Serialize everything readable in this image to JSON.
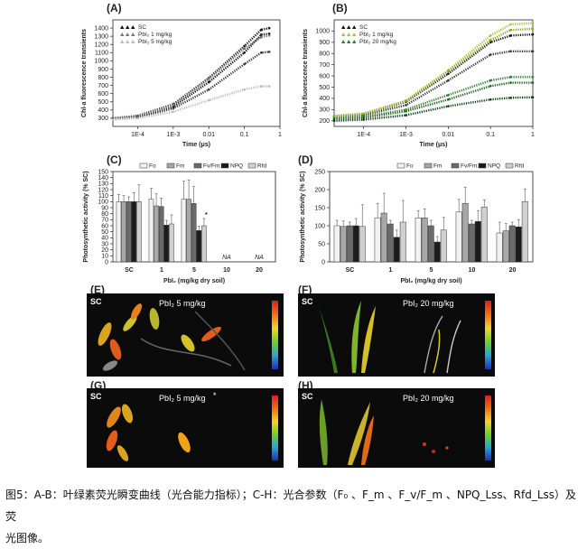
{
  "panel_labels": {
    "A": "(A)",
    "B": "(B)",
    "C": "(C)",
    "D": "(D)",
    "E": "(E)",
    "F": "(F)",
    "G": "(G)",
    "H": "(H)"
  },
  "chart_data": [
    {
      "id": "A",
      "type": "line",
      "xscale": "log",
      "xlabel": "Time (μs)",
      "ylabel": "Chl-a fluorescence transients",
      "xlim": [
        2e-05,
        1
      ],
      "ylim": [
        200,
        1500
      ],
      "xticks": [
        {
          "v": 0.0001,
          "label": "1E-4"
        },
        {
          "v": 0.001,
          "label": "1E-3"
        },
        {
          "v": 0.01,
          "label": "0.01"
        },
        {
          "v": 0.1,
          "label": "0.1"
        },
        {
          "v": 1,
          "label": "1"
        }
      ],
      "yticks": [
        300,
        400,
        500,
        600,
        700,
        800,
        900,
        1000,
        1100,
        1200,
        1300,
        1400
      ],
      "legend": [
        "SC",
        "PbI₂ 1 mg/kg",
        "PbI₂ 5 mg/kg"
      ],
      "series": [
        {
          "name": "SC",
          "color": "#111111",
          "values": [
            [
              2e-05,
              300
            ],
            [
              0.0001,
              330
            ],
            [
              0.001,
              470
            ],
            [
              0.01,
              790
            ],
            [
              0.1,
              1180
            ],
            [
              0.3,
              1380
            ],
            [
              0.5,
              1400
            ]
          ]
        },
        {
          "name": "",
          "color": "#111111",
          "values": [
            [
              2e-05,
              295
            ],
            [
              0.0001,
              320
            ],
            [
              0.001,
              440
            ],
            [
              0.01,
              740
            ],
            [
              0.1,
              1100
            ],
            [
              0.3,
              1320
            ],
            [
              0.5,
              1330
            ]
          ]
        },
        {
          "name": "PbI₂ 1 mg/kg",
          "color": "#777777",
          "values": [
            [
              2e-05,
              298
            ],
            [
              0.0001,
              325
            ],
            [
              0.001,
              460
            ],
            [
              0.01,
              780
            ],
            [
              0.1,
              1150
            ],
            [
              0.3,
              1290
            ],
            [
              0.5,
              1310
            ]
          ]
        },
        {
          "name": "",
          "color": "#333333",
          "values": [
            [
              2e-05,
              290
            ],
            [
              0.0001,
              310
            ],
            [
              0.001,
              420
            ],
            [
              0.01,
              650
            ],
            [
              0.1,
              960
            ],
            [
              0.3,
              1100
            ],
            [
              0.5,
              1110
            ]
          ]
        },
        {
          "name": "PbI₂ 5 mg/kg",
          "color": "#bbbbbb",
          "values": [
            [
              2e-05,
              285
            ],
            [
              0.0001,
              300
            ],
            [
              0.001,
              380
            ],
            [
              0.01,
              520
            ],
            [
              0.1,
              650
            ],
            [
              0.3,
              690
            ],
            [
              0.5,
              690
            ]
          ]
        }
      ]
    },
    {
      "id": "B",
      "type": "line",
      "xscale": "log",
      "xlabel": "Time (μs)",
      "ylabel": "Chl-a fluorescence transients",
      "xlim": [
        2e-05,
        1
      ],
      "ylim": [
        150,
        1100
      ],
      "xticks": [
        {
          "v": 0.0001,
          "label": "1E-4"
        },
        {
          "v": 0.001,
          "label": "1E-3"
        },
        {
          "v": 0.01,
          "label": "0.01"
        },
        {
          "v": 0.1,
          "label": "0.1"
        },
        {
          "v": 1,
          "label": "1"
        }
      ],
      "yticks": [
        200,
        300,
        400,
        500,
        600,
        700,
        800,
        900,
        1000
      ],
      "legend": [
        "SC",
        "PbI₂ 1 mg/kg",
        "PbI₂ 20 mg/kg"
      ],
      "series": [
        {
          "name": "SC",
          "color": "#111111",
          "values": [
            [
              2e-05,
              240
            ],
            [
              0.0001,
              260
            ],
            [
              0.001,
              370
            ],
            [
              0.01,
              620
            ],
            [
              0.1,
              900
            ],
            [
              0.3,
              960
            ],
            [
              1,
              970
            ]
          ]
        },
        {
          "name": "",
          "color": "#333333",
          "values": [
            [
              2e-05,
              235
            ],
            [
              0.0001,
              250
            ],
            [
              0.001,
              340
            ],
            [
              0.01,
              560
            ],
            [
              0.1,
              790
            ],
            [
              0.3,
              820
            ],
            [
              1,
              820
            ]
          ]
        },
        {
          "name": "PbI₂ 1 mg/kg",
          "color": "#a8c23a",
          "values": [
            [
              2e-05,
              245
            ],
            [
              0.0001,
              265
            ],
            [
              0.001,
              380
            ],
            [
              0.01,
              650
            ],
            [
              0.1,
              960
            ],
            [
              0.3,
              1060
            ],
            [
              1,
              1070
            ]
          ]
        },
        {
          "name": "",
          "color": "#8aa82c",
          "values": [
            [
              2e-05,
              242
            ],
            [
              0.0001,
              262
            ],
            [
              0.001,
              375
            ],
            [
              0.01,
              640
            ],
            [
              0.1,
              920
            ],
            [
              0.3,
              1010
            ],
            [
              1,
              1020
            ]
          ]
        },
        {
          "name": "PbI₂ 20 mg/kg",
          "color": "#2e7d32",
          "values": [
            [
              2e-05,
              220
            ],
            [
              0.0001,
              235
            ],
            [
              0.001,
              300
            ],
            [
              0.01,
              430
            ],
            [
              0.1,
              560
            ],
            [
              0.3,
              590
            ],
            [
              1,
              590
            ]
          ]
        },
        {
          "name": "",
          "color": "#1b5e20",
          "values": [
            [
              2e-05,
              215
            ],
            [
              0.0001,
              228
            ],
            [
              0.001,
              285
            ],
            [
              0.01,
              390
            ],
            [
              0.1,
              510
            ],
            [
              0.3,
              540
            ],
            [
              1,
              540
            ]
          ]
        },
        {
          "name": "",
          "color": "#0d3d12",
          "values": [
            [
              2e-05,
              200
            ],
            [
              0.0001,
              210
            ],
            [
              0.001,
              250
            ],
            [
              0.01,
              330
            ],
            [
              0.1,
              390
            ],
            [
              0.3,
              405
            ],
            [
              1,
              410
            ]
          ]
        }
      ]
    },
    {
      "id": "C",
      "type": "bar",
      "xlabel": "PbI₂ (mg/kg dry soil)",
      "ylabel": "Photosynthetic activity (% SC)",
      "ylim": [
        0,
        150
      ],
      "yticks": [
        0,
        10,
        20,
        30,
        40,
        50,
        60,
        70,
        80,
        90,
        100,
        110,
        120,
        130,
        140,
        150
      ],
      "categories": [
        "SC",
        "1",
        "5",
        "10",
        "20"
      ],
      "na_label": "NA",
      "na_categories": [
        3,
        4
      ],
      "star": {
        "category": 2,
        "text": "*"
      },
      "series": [
        {
          "name": "Fo",
          "color": "#f2f2f2",
          "values": [
            100,
            104,
            104,
            0,
            0
          ],
          "err": [
            12,
            18,
            30,
            0,
            0
          ]
        },
        {
          "name": "Fm",
          "color": "#a8a8a8",
          "values": [
            100,
            93,
            104,
            0,
            0
          ],
          "err": [
            10,
            20,
            32,
            0,
            0
          ]
        },
        {
          "name": "Fv/Fm",
          "color": "#6a6a6a",
          "values": [
            100,
            92,
            97,
            0,
            0
          ],
          "err": [
            8,
            14,
            28,
            0,
            0
          ]
        },
        {
          "name": "NPQ",
          "color": "#1c1c1c",
          "values": [
            100,
            61,
            52,
            0,
            0
          ],
          "err": [
            15,
            8,
            7,
            0,
            0
          ]
        },
        {
          "name": "Rfd",
          "color": "#d0d0d0",
          "values": [
            100,
            63,
            60,
            0,
            0
          ],
          "err": [
            28,
            15,
            12,
            0,
            0
          ]
        }
      ]
    },
    {
      "id": "D",
      "type": "bar",
      "xlabel": "PbI₂ (mg/kg dry soil)",
      "ylabel": "Photosynthetic activity (% SC)",
      "ylim": [
        0,
        250
      ],
      "yticks": [
        0,
        50,
        100,
        150,
        200,
        250
      ],
      "categories": [
        "SC",
        "1",
        "5",
        "10",
        "20"
      ],
      "series": [
        {
          "name": "Fo",
          "color": "#f2f2f2",
          "values": [
            100,
            122,
            122,
            138,
            80
          ],
          "err": [
            15,
            40,
            20,
            35,
            30
          ]
        },
        {
          "name": "Fm",
          "color": "#a8a8a8",
          "values": [
            98,
            135,
            122,
            162,
            86
          ],
          "err": [
            15,
            55,
            25,
            45,
            20
          ]
        },
        {
          "name": "Fv/Fm",
          "color": "#6a6a6a",
          "values": [
            100,
            105,
            100,
            105,
            100
          ],
          "err": [
            10,
            10,
            15,
            10,
            10
          ]
        },
        {
          "name": "NPQ",
          "color": "#1c1c1c",
          "values": [
            100,
            68,
            55,
            112,
            97
          ],
          "err": [
            20,
            20,
            15,
            30,
            20
          ]
        },
        {
          "name": "Rfd",
          "color": "#d0d0d0",
          "values": [
            98,
            110,
            88,
            152,
            167
          ],
          "err": [
            60,
            60,
            35,
            20,
            35
          ]
        }
      ]
    }
  ],
  "image_panels": {
    "E": {
      "corner": "SC",
      "title": "PbI₂ 5 mg/kg"
    },
    "F": {
      "corner": "SC",
      "title": "PbI₂ 20 mg/kg"
    },
    "G": {
      "corner": "SC",
      "title": "PbI₂ 5 mg/kg",
      "star": "*"
    },
    "H": {
      "corner": "SC",
      "title": "PbI₂ 20 mg/kg"
    }
  },
  "caption": {
    "line1": "图5：A-B：叶绿素荧光瞬变曲线（光合能力指标）；C-H：光合参数（F₀ 、F_m 、F_v/F_m 、NPQ_Lss、Rfd_Lss）及荧",
    "line2": "光图像。"
  }
}
